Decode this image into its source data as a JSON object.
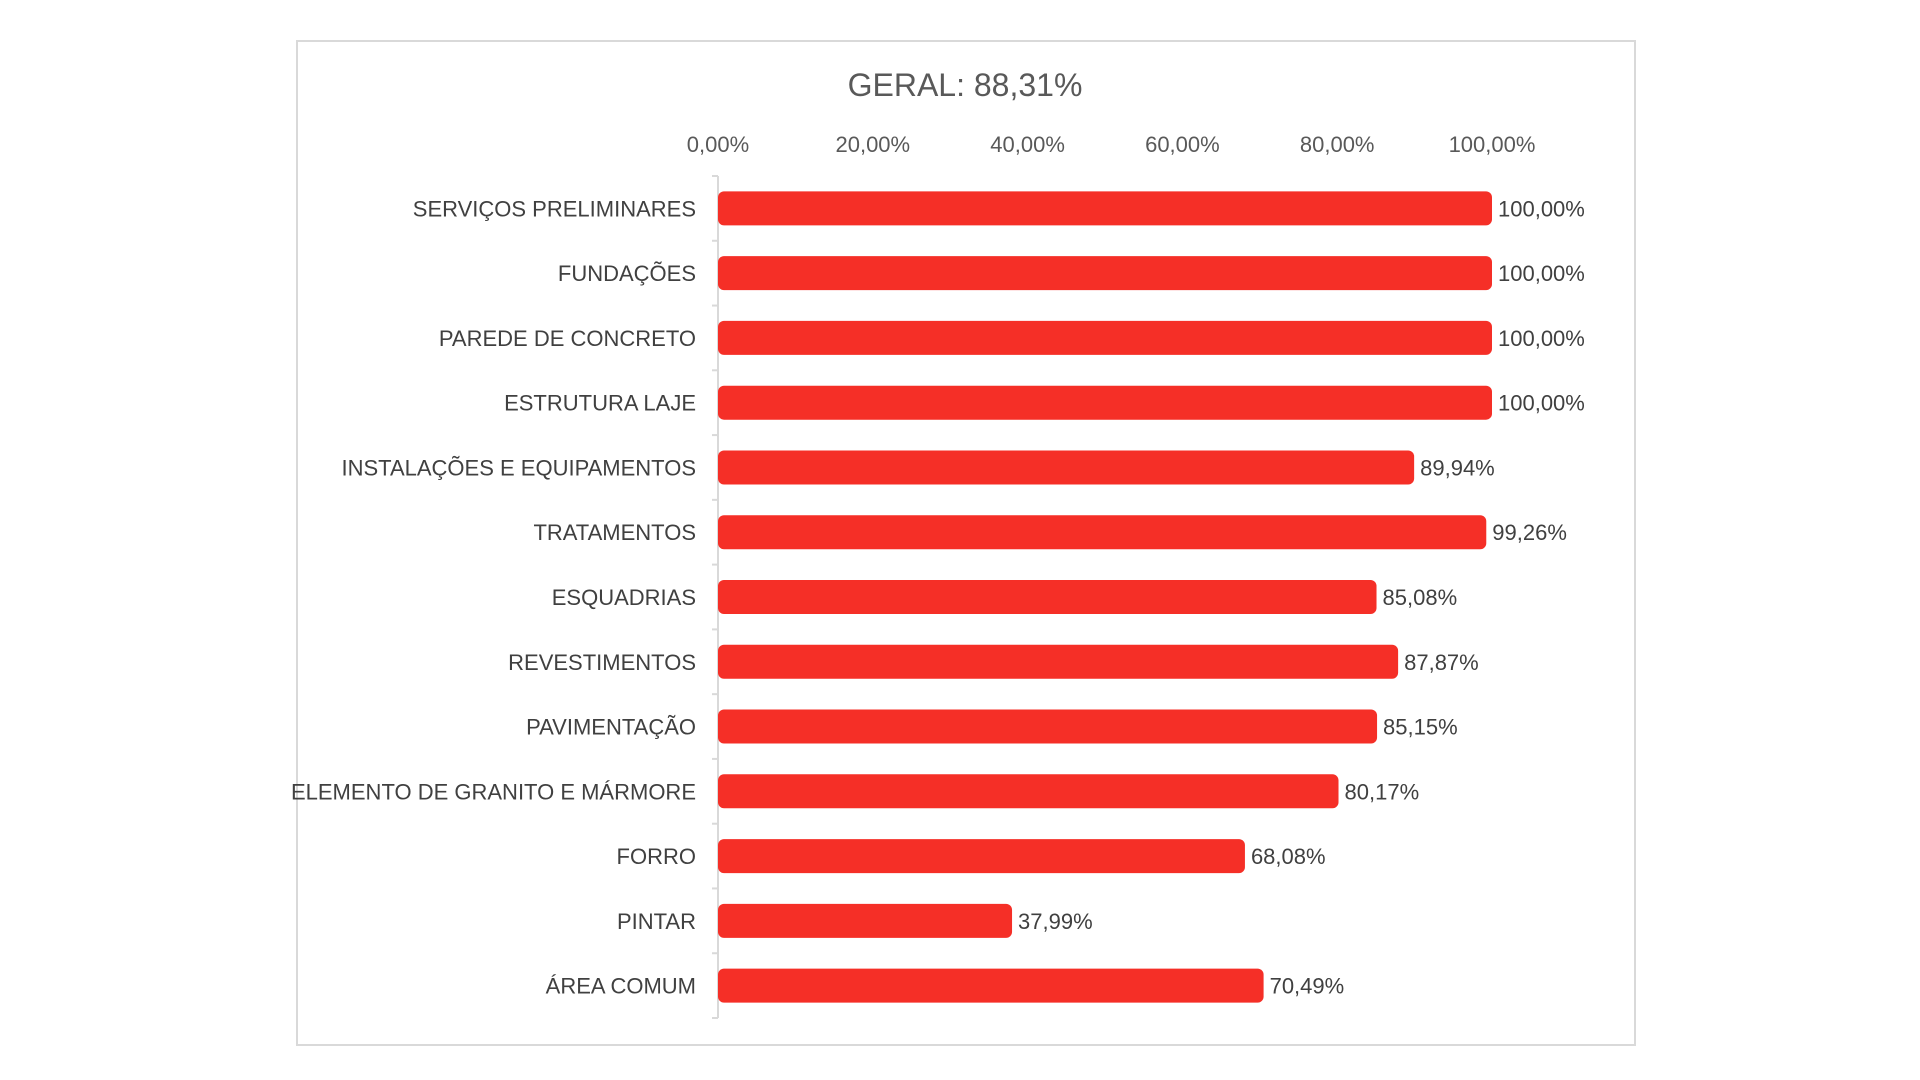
{
  "chart_data": {
    "type": "bar",
    "orientation": "horizontal",
    "title": "GERAL: 88,31%",
    "xlabel": "",
    "ylabel": "",
    "xlim": [
      0,
      100
    ],
    "x_ticks": [
      "0,00%",
      "20,00%",
      "40,00%",
      "60,00%",
      "80,00%",
      "100,00%"
    ],
    "x_tick_values": [
      0,
      20,
      40,
      60,
      80,
      100
    ],
    "x_axis_position": "top",
    "grid": false,
    "legend": "none",
    "bar_color": "#f52f27",
    "categories": [
      "SERVIÇOS PRELIMINARES",
      "FUNDAÇÕES",
      "PAREDE DE CONCRETO",
      "ESTRUTURA LAJE",
      "INSTALAÇÕES E EQUIPAMENTOS",
      "TRATAMENTOS",
      "ESQUADRIAS",
      "REVESTIMENTOS",
      "PAVIMENTAÇÃO",
      "ELEMENTO DE GRANITO E MÁRMORE",
      "FORRO",
      "PINTAR",
      "ÁREA COMUM"
    ],
    "values": [
      100.0,
      100.0,
      100.0,
      100.0,
      89.94,
      99.26,
      85.08,
      87.87,
      85.15,
      80.17,
      68.08,
      37.99,
      70.49
    ],
    "data_labels": [
      "100,00%",
      "100,00%",
      "100,00%",
      "100,00%",
      "89,94%",
      "99,26%",
      "85,08%",
      "87,87%",
      "85,15%",
      "80,17%",
      "68,08%",
      "37,99%",
      "70,49%"
    ]
  }
}
